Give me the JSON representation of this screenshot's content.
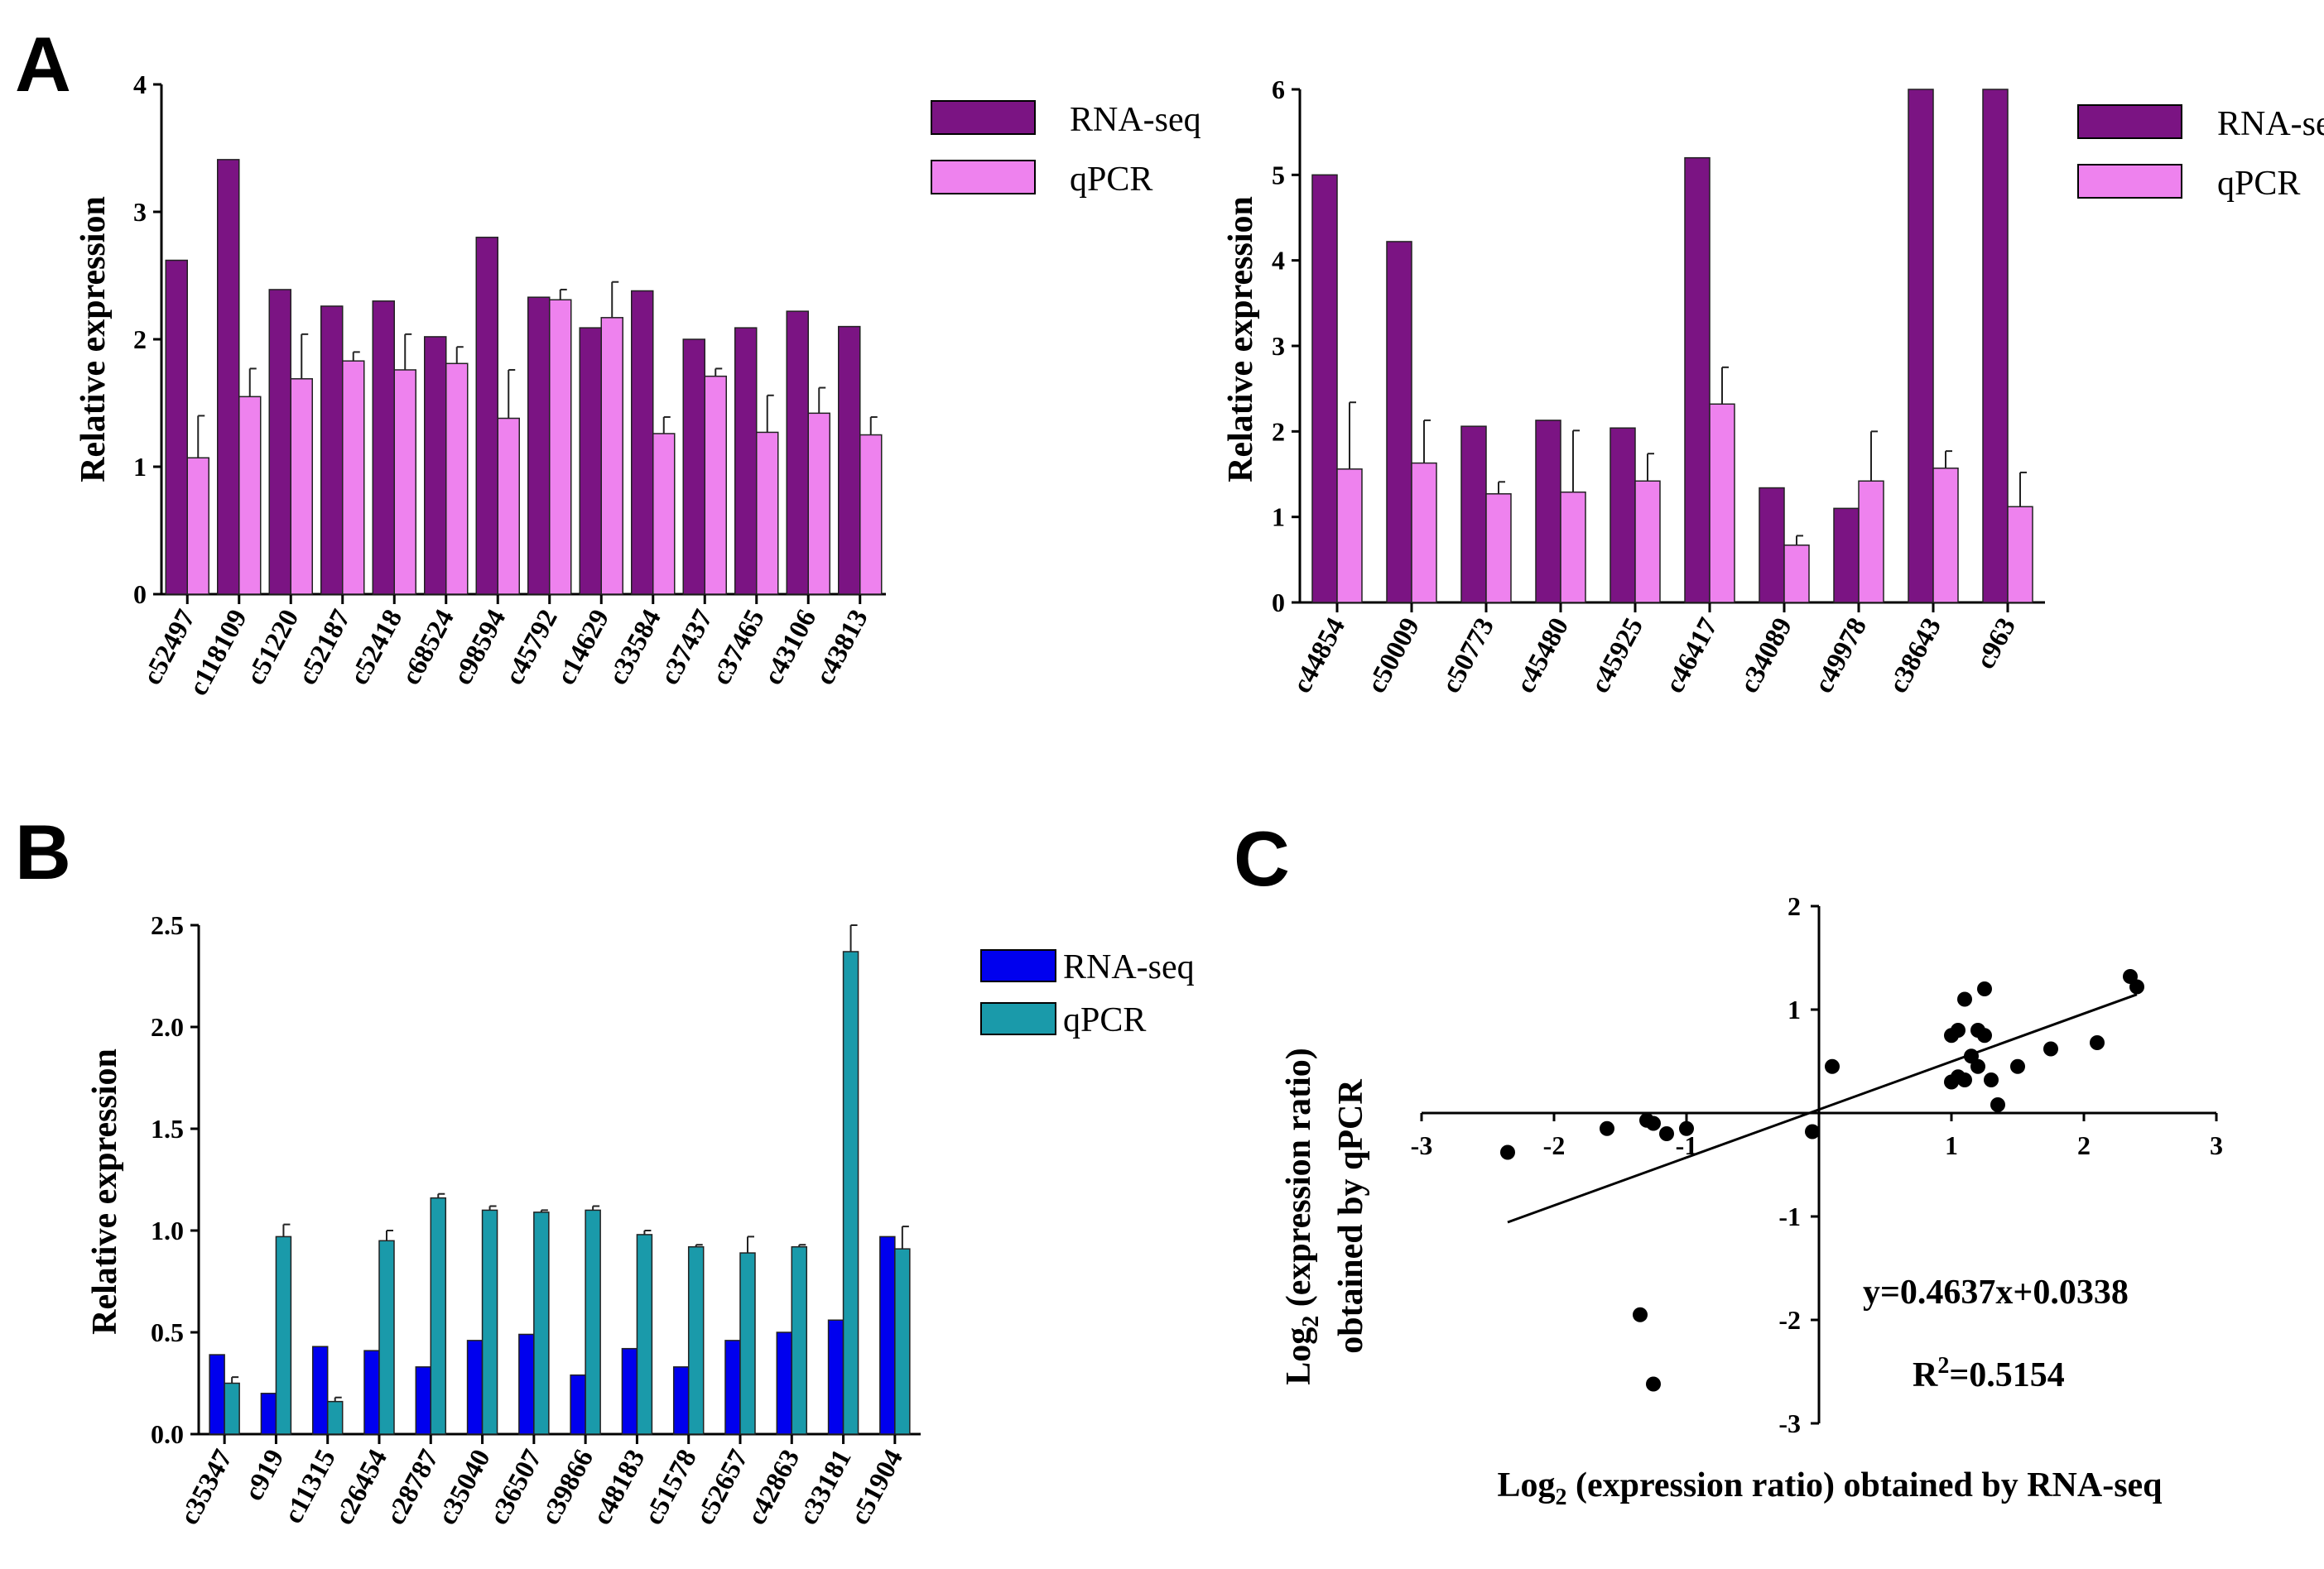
{
  "panels": {
    "A": "A",
    "B": "B",
    "C": "C"
  },
  "legend": {
    "rna": "RNA-seq",
    "qpcr": "qPCR"
  },
  "colors": {
    "a_rna": "#7b1483",
    "a_qpcr": "#ee82ee",
    "b_rna": "#0000ee",
    "b_qpcr": "#1a9aaa",
    "axis": "#000000",
    "scatter": "#000000"
  },
  "chart_data": [
    {
      "id": "A-left",
      "type": "bar",
      "title": "",
      "xlabel": "",
      "ylabel": "Relative expression",
      "ylim": [
        0,
        4
      ],
      "yticks": [
        "0",
        "1",
        "2",
        "3",
        "4"
      ],
      "categories": [
        "c52497",
        "c118109",
        "c51220",
        "c52187",
        "c52418",
        "c68524",
        "c98594",
        "c45792",
        "c14629",
        "c33584",
        "c37437",
        "c37465",
        "c43106",
        "c43813"
      ],
      "series": [
        {
          "name": "RNA-seq",
          "values": [
            2.62,
            3.41,
            2.39,
            2.26,
            2.3,
            2.02,
            2.8,
            2.33,
            2.09,
            2.38,
            2.0,
            2.09,
            2.22,
            2.1
          ]
        },
        {
          "name": "qPCR",
          "values": [
            1.07,
            1.55,
            1.69,
            1.83,
            1.76,
            1.81,
            1.38,
            2.31,
            2.17,
            1.26,
            1.71,
            1.27,
            1.42,
            1.25
          ],
          "errors": [
            0.33,
            0.22,
            0.35,
            0.07,
            0.28,
            0.13,
            0.38,
            0.08,
            0.28,
            0.13,
            0.06,
            0.29,
            0.2,
            0.14
          ]
        }
      ],
      "legend": "top-right"
    },
    {
      "id": "A-right",
      "type": "bar",
      "title": "",
      "xlabel": "",
      "ylabel": "Relative expression",
      "ylim": [
        0,
        6
      ],
      "yticks": [
        "0",
        "1",
        "2",
        "3",
        "4",
        "5",
        "6"
      ],
      "categories": [
        "c44854",
        "c50009",
        "c50773",
        "c45480",
        "c45925",
        "c46417",
        "c34089",
        "c49978",
        "c38643",
        "c963"
      ],
      "series": [
        {
          "name": "RNA-seq",
          "values": [
            5.0,
            4.22,
            2.06,
            2.13,
            2.04,
            5.2,
            1.34,
            1.1,
            6.0,
            6.0
          ]
        },
        {
          "name": "qPCR",
          "values": [
            1.56,
            1.63,
            1.27,
            1.29,
            1.42,
            2.32,
            0.67,
            1.42,
            1.57,
            1.12
          ],
          "errors": [
            0.78,
            0.5,
            0.14,
            0.72,
            0.32,
            0.43,
            0.11,
            0.58,
            0.2,
            0.4
          ]
        }
      ],
      "legend": "top-right"
    },
    {
      "id": "B",
      "type": "bar",
      "title": "",
      "xlabel": "",
      "ylabel": "Relative expression",
      "ylim": [
        0,
        2.5
      ],
      "yticks": [
        "0.0",
        "0.5",
        "1.0",
        "1.5",
        "2.0",
        "2.5"
      ],
      "categories": [
        "c35347",
        "c919",
        "c11315",
        "c26454",
        "c28787",
        "c35040",
        "c36507",
        "c39866",
        "c48183",
        "c51578",
        "c52657",
        "c42863",
        "c33181",
        "c51904"
      ],
      "series": [
        {
          "name": "RNA-seq",
          "values": [
            0.39,
            0.2,
            0.43,
            0.41,
            0.33,
            0.46,
            0.49,
            0.29,
            0.42,
            0.33,
            0.46,
            0.5,
            0.56,
            0.97
          ]
        },
        {
          "name": "qPCR",
          "values": [
            0.25,
            0.97,
            0.16,
            0.95,
            1.16,
            1.1,
            1.09,
            1.1,
            0.98,
            0.92,
            0.89,
            0.92,
            2.37,
            0.91
          ],
          "errors": [
            0.03,
            0.06,
            0.02,
            0.05,
            0.02,
            0.02,
            0.01,
            0.02,
            0.02,
            0.01,
            0.08,
            0.01,
            0.2,
            0.11
          ]
        }
      ],
      "legend": "top-right"
    },
    {
      "id": "C",
      "type": "scatter",
      "title": "",
      "xlabel_parts": {
        "pre": "Log",
        "sub": "2",
        "post": " (expression ratio) obtained by RNA-seq"
      },
      "ylabel_parts": {
        "line1_pre": "Log",
        "line1_sub": "2",
        "line1_post": " (expression ratio)",
        "line2": "obtained by qPCR"
      },
      "xlim": [
        -3,
        3
      ],
      "ylim": [
        -3,
        2
      ],
      "xticks": [
        "-3",
        "-2",
        "-1",
        "1",
        "2",
        "3"
      ],
      "yticks": [
        "-3",
        "-2",
        "-1",
        "1",
        "2"
      ],
      "x": [
        -2.35,
        -1.6,
        -1.3,
        -1.25,
        -1.15,
        -1.0,
        -0.05,
        0.1,
        -1.35,
        -1.25,
        1.0,
        1.05,
        1.1,
        1.0,
        1.05,
        1.1,
        1.15,
        1.2,
        1.25,
        1.3,
        1.25,
        1.2,
        1.35,
        1.5,
        1.75,
        2.1,
        2.35,
        2.4
      ],
      "y": [
        -0.38,
        -0.15,
        -0.07,
        -0.1,
        -0.2,
        -0.15,
        -0.18,
        0.45,
        -1.95,
        -2.62,
        0.3,
        0.35,
        0.32,
        0.75,
        0.8,
        1.1,
        0.55,
        0.8,
        0.75,
        0.32,
        1.2,
        0.45,
        0.08,
        0.45,
        0.62,
        0.68,
        1.32,
        1.22
      ],
      "fit": {
        "slope": 0.4637,
        "intercept": 0.0338,
        "x_range": [
          -2.35,
          2.4
        ]
      },
      "equation": "y=0.4637x+0.0338",
      "r2_parts": {
        "pre": "R",
        "sup": "2",
        "post": "=0.5154"
      }
    }
  ]
}
